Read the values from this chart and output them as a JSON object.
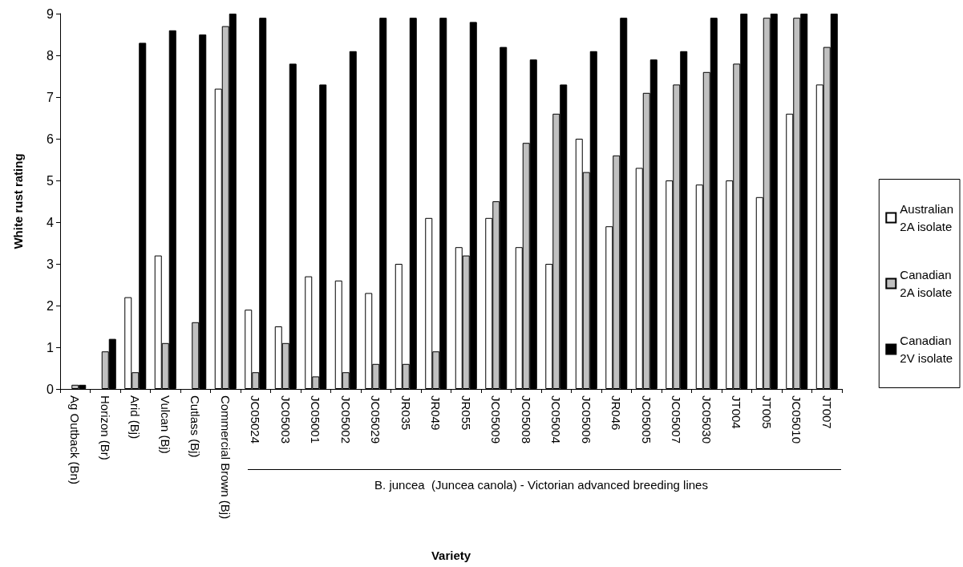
{
  "chart_data": {
    "type": "bar",
    "xlabel": "Variety",
    "ylabel": "White rust rating",
    "categories": [
      "Ag Outback (Bn)",
      "Horizon (Br)",
      "Arid (Bj)",
      "Vulcan (Bj)",
      "Cutlass (Bj)",
      "Commercial Brown (Bj)",
      "JC05024",
      "JC05003",
      "JC05001",
      "JC05002",
      "JC05029",
      "JR035",
      "JR049",
      "JR055",
      "JC05009",
      "JC05008",
      "JC05004",
      "JC05006",
      "JR046",
      "JC05005",
      "JC05007",
      "JC05030",
      "JT004",
      "JT005",
      "JC05010",
      "JT007"
    ],
    "series": [
      {
        "name": "Australian 2A isolate",
        "color": "#ffffff",
        "values": [
          null,
          null,
          2.2,
          3.2,
          null,
          7.2,
          1.9,
          1.5,
          2.7,
          2.6,
          2.3,
          3.0,
          4.1,
          3.4,
          4.1,
          3.4,
          3.0,
          6.0,
          3.9,
          5.3,
          5.0,
          4.9,
          5.0,
          4.6,
          6.6,
          7.3
        ]
      },
      {
        "name": "Canadian 2A isolate",
        "color": "#c0c0c0",
        "values": [
          0.1,
          0.9,
          0.4,
          1.1,
          1.6,
          8.7,
          0.4,
          1.1,
          0.3,
          0.4,
          0.6,
          0.6,
          0.9,
          3.2,
          4.5,
          5.9,
          6.6,
          5.2,
          5.6,
          7.1,
          7.3,
          7.6,
          7.8,
          8.9,
          8.9,
          8.2
        ]
      },
      {
        "name": "Canadian 2V isolate",
        "color": "#000000",
        "values": [
          0.1,
          1.2,
          8.3,
          8.6,
          8.5,
          9.0,
          8.9,
          7.8,
          7.3,
          8.1,
          8.9,
          8.9,
          8.9,
          8.8,
          8.2,
          7.9,
          7.3,
          8.1,
          8.9,
          7.9,
          8.1,
          8.9,
          9.0,
          9.0,
          9.0,
          9.0
        ]
      }
    ],
    "ylim": [
      0,
      9
    ],
    "yticks": [
      0,
      1,
      2,
      3,
      4,
      5,
      6,
      7,
      8,
      9
    ],
    "grid": false,
    "legend": "right",
    "annotations": [
      "B. juncea  (Juncea canola) - Victorian advanced breeding lines"
    ]
  }
}
